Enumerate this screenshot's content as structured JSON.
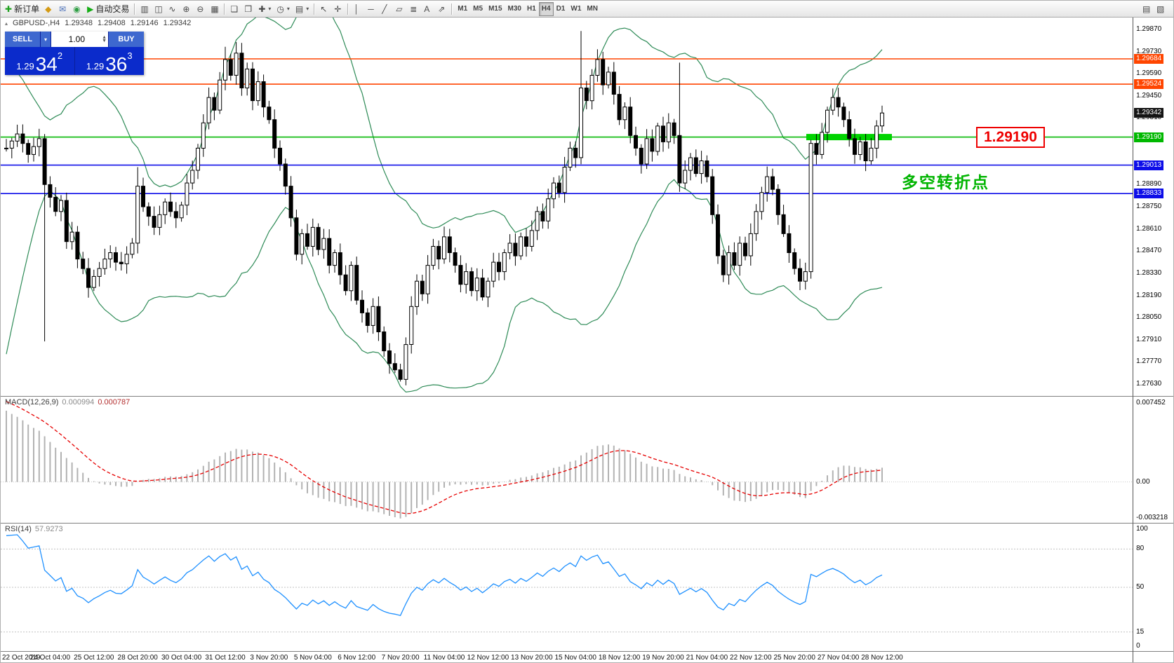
{
  "toolbar": {
    "groups": [
      {
        "name": "trade",
        "items": [
          {
            "name": "new-order",
            "icon": "✚",
            "icon_color": "#1fa11f",
            "label": "新订单"
          },
          {
            "name": "alert",
            "icon": "◆",
            "icon_color": "#d49a14"
          },
          {
            "name": "mailbox",
            "icon": "✉",
            "icon_color": "#4a6fb8"
          },
          {
            "name": "script-run",
            "icon": "◉",
            "icon_color": "#2f9e44"
          },
          {
            "name": "auto-trading",
            "icon": "▶",
            "icon_color": "#14ad14",
            "label": "自动交易"
          }
        ]
      },
      {
        "name": "chart-type",
        "items": [
          {
            "name": "bar-chart",
            "icon": "▥"
          },
          {
            "name": "candlestick-chart",
            "icon": "◫"
          },
          {
            "name": "line-chart",
            "icon": "∿"
          },
          {
            "name": "zoom-in",
            "icon": "⊕"
          },
          {
            "name": "zoom-out",
            "icon": "⊖"
          },
          {
            "name": "grid",
            "icon": "▦"
          }
        ]
      },
      {
        "name": "windows",
        "items": [
          {
            "name": "tile-windows",
            "icon": "❏"
          },
          {
            "name": "cascade-windows",
            "icon": "❐"
          },
          {
            "name": "add-indicator",
            "icon": "✚",
            "dropdown": true
          },
          {
            "name": "periods-menu",
            "icon": "◷",
            "dropdown": true
          },
          {
            "name": "templates-menu",
            "icon": "▤",
            "dropdown": true
          }
        ]
      },
      {
        "name": "cursor-tools",
        "items": [
          {
            "name": "cursor",
            "icon": "↖"
          },
          {
            "name": "crosshair",
            "icon": "✛"
          }
        ]
      },
      {
        "name": "draw-tools",
        "items": [
          {
            "name": "vertical-line",
            "icon": "│"
          },
          {
            "name": "horizontal-line",
            "icon": "─"
          },
          {
            "name": "trend-line",
            "icon": "╱"
          },
          {
            "name": "equidistant-channel",
            "icon": "▱"
          },
          {
            "name": "fibonacci",
            "icon": "≣"
          },
          {
            "name": "text-label",
            "icon": "A"
          },
          {
            "name": "arrow-objects",
            "icon": "⇗"
          }
        ]
      },
      {
        "name": "timeframes",
        "items": [
          {
            "name": "tf-m1",
            "text": "M1"
          },
          {
            "name": "tf-m5",
            "text": "M5"
          },
          {
            "name": "tf-m15",
            "text": "M15"
          },
          {
            "name": "tf-m30",
            "text": "M30"
          },
          {
            "name": "tf-h1",
            "text": "H1"
          },
          {
            "name": "tf-h4",
            "text": "H4",
            "active": true
          },
          {
            "name": "tf-d1",
            "text": "D1"
          },
          {
            "name": "tf-w1",
            "text": "W1"
          },
          {
            "name": "tf-mn",
            "text": "MN"
          }
        ]
      },
      {
        "name": "right",
        "align": "right",
        "items": [
          {
            "name": "chart-list",
            "icon": "▤"
          },
          {
            "name": "chart-shift",
            "icon": "▧"
          }
        ]
      }
    ]
  },
  "symbol_info": {
    "symbol": "GBPUSD-,H4",
    "open": "1.29348",
    "high": "1.29408",
    "low": "1.29146",
    "close": "1.29342"
  },
  "trade_panel": {
    "sell_label": "SELL",
    "buy_label": "BUY",
    "volume": "1.00",
    "sell_price": {
      "big": "1.29",
      "pips": "34",
      "pipette": "2"
    },
    "buy_price": {
      "big": "1.29",
      "pips": "36",
      "pipette": "3"
    }
  },
  "annotations": {
    "price_box": "1.29190",
    "note_text": "多空转折点"
  },
  "indicators": {
    "macd": {
      "name": "MACD(12,26,9)",
      "value1": "0.000994",
      "value2": "0.000787"
    },
    "rsi": {
      "name": "RSI(14)",
      "value": "57.9273"
    }
  },
  "chart_data": {
    "type": "candlestick",
    "symbol": "GBPUSD-",
    "timeframe": "H4",
    "price_axis": {
      "max": 1.29945,
      "min": 1.27555,
      "tick_labels": [
        "1.29870",
        "1.29730",
        "1.29590",
        "1.29450",
        "1.29310",
        "1.29170",
        "1.28890",
        "1.28750",
        "1.28610",
        "1.28470",
        "1.28330",
        "1.28190",
        "1.28050",
        "1.27910",
        "1.27770",
        "1.27630"
      ]
    },
    "current_bid": {
      "price": 1.29342,
      "label_bg": "#141414"
    },
    "levels": [
      {
        "name": "resistance-upper",
        "price": 1.29684,
        "color": "#FF4500"
      },
      {
        "name": "resistance-lower",
        "price": 1.29524,
        "color": "#FF4500"
      },
      {
        "name": "pivot-green",
        "price": 1.2919,
        "color": "#00B800",
        "thick_segment_x": [
          1148,
          1270
        ],
        "segment_color": "#00D400"
      },
      {
        "name": "support-upper",
        "price": 1.29013,
        "color": "#0D0DE8"
      },
      {
        "name": "support-lower",
        "price": 1.28833,
        "color": "#0D0DE8"
      }
    ],
    "candles_close": [
      1.2912,
      1.29165,
      1.2921,
      1.2915,
      1.2908,
      1.2913,
      1.2918,
      1.2889,
      1.2881,
      1.2872,
      1.2879,
      1.2853,
      1.2859,
      1.2842,
      1.2836,
      1.2824,
      1.2831,
      1.2836,
      1.2842,
      1.2846,
      1.284,
      1.2839,
      1.2845,
      1.2852,
      1.2888,
      1.2875,
      1.2869,
      1.2862,
      1.287,
      1.2878,
      1.2872,
      1.2868,
      1.2876,
      1.289,
      1.2898,
      1.2912,
      1.2928,
      1.2944,
      1.2936,
      1.2955,
      1.2968,
      1.2958,
      1.2972,
      1.295,
      1.2962,
      1.2942,
      1.2954,
      1.2938,
      1.293,
      1.2912,
      1.2902,
      1.2888,
      1.2868,
      1.2845,
      1.2858,
      1.285,
      1.2862,
      1.2848,
      1.2855,
      1.2838,
      1.2846,
      1.2832,
      1.2822,
      1.2838,
      1.2816,
      1.2808,
      1.28,
      1.2812,
      1.2796,
      1.2784,
      1.2776,
      1.2772,
      1.2766,
      1.2788,
      1.2812,
      1.2828,
      1.282,
      1.2838,
      1.285,
      1.2842,
      1.2856,
      1.2846,
      1.2838,
      1.2826,
      1.2834,
      1.2822,
      1.283,
      1.2818,
      1.2828,
      1.284,
      1.2834,
      1.2846,
      1.2852,
      1.2844,
      1.2856,
      1.285,
      1.286,
      1.2872,
      1.2866,
      1.288,
      1.289,
      1.2884,
      1.29,
      1.2912,
      1.2906,
      1.295,
      1.2942,
      1.2958,
      1.2968,
      1.2952,
      1.296,
      1.2946,
      1.293,
      1.2938,
      1.292,
      1.2912,
      1.2902,
      1.2918,
      1.291,
      1.2926,
      1.2916,
      1.2928,
      1.292,
      1.289,
      1.2898,
      1.2906,
      1.2896,
      1.2904,
      1.2894,
      1.287,
      1.2844,
      1.2832,
      1.2846,
      1.2838,
      1.2852,
      1.2844,
      1.2858,
      1.2872,
      1.2884,
      1.2894,
      1.2886,
      1.287,
      1.2858,
      1.2846,
      1.2836,
      1.2828,
      1.2834,
      1.2915,
      1.2908,
      1.2922,
      1.2936,
      1.2944,
      1.2938,
      1.293,
      1.2918,
      1.2908,
      1.2916,
      1.2904,
      1.2912,
      1.2926,
      1.29342
    ],
    "wick_overrides": {
      "7": {
        "low": 1.279
      },
      "24": {
        "high": 1.29
      },
      "40": {
        "high": 1.2976
      },
      "42": {
        "high": 1.2979
      },
      "72": {
        "low": 1.27646
      },
      "105": {
        "high": 1.2986
      },
      "123": {
        "high": 1.2966
      }
    },
    "bollinger": {
      "period": 20,
      "deviation": 2,
      "color": "#2E8B57"
    },
    "macd": {
      "fast": 12,
      "slow": 26,
      "signal": 9,
      "axis_labels": [
        "0.007452",
        "0.00",
        "-0.003218"
      ],
      "histogram_color": "#b2b2b2",
      "signal_color": "#e60000"
    },
    "rsi": {
      "period": 14,
      "levels": [
        80,
        50,
        15
      ],
      "axis_labels": [
        "100",
        "80",
        "50",
        "15",
        "0"
      ],
      "color": "#1E90FF"
    },
    "time_labels": [
      "22 Oct 2019",
      "24 Oct 04:00",
      "25 Oct 12:00",
      "28 Oct 20:00",
      "30 Oct 04:00",
      "31 Oct 12:00",
      "3 Nov 20:00",
      "5 Nov 04:00",
      "6 Nov 12:00",
      "7 Nov 20:00",
      "11 Nov 04:00",
      "12 Nov 12:00",
      "13 Nov 20:00",
      "15 Nov 04:00",
      "18 Nov 12:00",
      "19 Nov 20:00",
      "21 Nov 04:00",
      "22 Nov 12:00",
      "25 Nov 20:00",
      "27 Nov 04:00",
      "28 Nov 12:00"
    ],
    "label_every": 8
  }
}
